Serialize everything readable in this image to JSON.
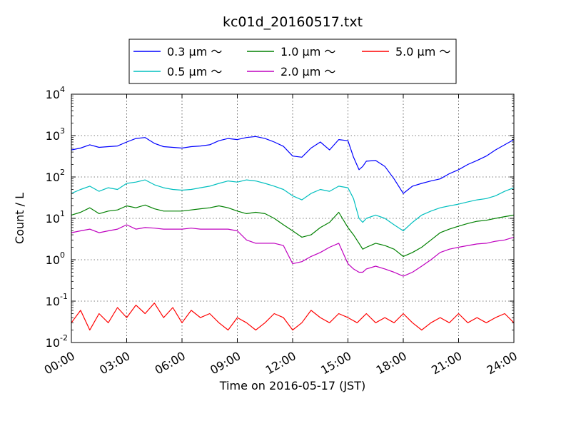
{
  "chart_data": {
    "type": "line",
    "title": "kc01d_20160517.txt",
    "xlabel": "Time on 2016-05-17 (JST)",
    "ylabel": "Count / L",
    "yscale": "log",
    "ylim": [
      0.01,
      10000
    ],
    "xlim_hours": [
      0,
      24
    ],
    "grid": true,
    "legend_position": "top-center",
    "x_ticks": [
      "00:00",
      "03:00",
      "06:00",
      "09:00",
      "12:00",
      "15:00",
      "18:00",
      "21:00",
      "24:00"
    ],
    "y_ticks": [
      {
        "base": "10",
        "exp": "-2"
      },
      {
        "base": "10",
        "exp": "-1"
      },
      {
        "base": "10",
        "exp": "0"
      },
      {
        "base": "10",
        "exp": "1"
      },
      {
        "base": "10",
        "exp": "2"
      },
      {
        "base": "10",
        "exp": "3"
      },
      {
        "base": "10",
        "exp": "4"
      }
    ],
    "series": [
      {
        "name": "0.3 μm ～",
        "color": "#0000ff",
        "x": [
          0,
          0.5,
          1,
          1.5,
          2,
          2.5,
          3,
          3.5,
          4,
          4.5,
          5,
          5.5,
          6,
          6.5,
          7,
          7.5,
          8,
          8.5,
          9,
          9.5,
          10,
          10.5,
          11,
          11.5,
          12,
          12.5,
          13,
          13.5,
          14,
          14.5,
          15,
          15.3,
          15.6,
          15.8,
          16,
          16.5,
          17,
          17.5,
          18,
          18.5,
          19,
          19.5,
          20,
          20.5,
          21,
          21.5,
          22,
          22.5,
          23,
          23.5,
          24
        ],
        "y": [
          450,
          500,
          600,
          520,
          540,
          560,
          700,
          850,
          900,
          650,
          540,
          520,
          500,
          540,
          560,
          600,
          750,
          850,
          800,
          900,
          950,
          850,
          700,
          550,
          320,
          300,
          500,
          700,
          450,
          800,
          750,
          300,
          150,
          180,
          240,
          250,
          180,
          90,
          40,
          60,
          70,
          80,
          90,
          120,
          150,
          200,
          250,
          320,
          450,
          600,
          800
        ]
      },
      {
        "name": "0.5 μm ～",
        "color": "#00bfbf",
        "x": [
          0,
          0.5,
          1,
          1.5,
          2,
          2.5,
          3,
          3.5,
          4,
          4.5,
          5,
          5.5,
          6,
          6.5,
          7,
          7.5,
          8,
          8.5,
          9,
          9.5,
          10,
          10.5,
          11,
          11.5,
          12,
          12.5,
          13,
          13.5,
          14,
          14.5,
          15,
          15.3,
          15.6,
          15.8,
          16,
          16.5,
          17,
          17.5,
          18,
          18.5,
          19,
          19.5,
          20,
          20.5,
          21,
          21.5,
          22,
          22.5,
          23,
          23.5,
          24
        ],
        "y": [
          40,
          50,
          60,
          45,
          55,
          50,
          70,
          75,
          85,
          65,
          55,
          50,
          48,
          50,
          55,
          60,
          70,
          80,
          75,
          85,
          80,
          70,
          60,
          50,
          35,
          28,
          40,
          50,
          45,
          60,
          55,
          30,
          10,
          8,
          10,
          12,
          10,
          7,
          5,
          8,
          12,
          15,
          18,
          20,
          22,
          25,
          28,
          30,
          35,
          45,
          55
        ]
      },
      {
        "name": "1.0 μm ～",
        "color": "#008000",
        "x": [
          0,
          0.5,
          1,
          1.5,
          2,
          2.5,
          3,
          3.5,
          4,
          4.5,
          5,
          5.5,
          6,
          6.5,
          7,
          7.5,
          8,
          8.5,
          9,
          9.5,
          10,
          10.5,
          11,
          11.5,
          12,
          12.5,
          13,
          13.5,
          14,
          14.5,
          15,
          15.3,
          15.6,
          15.8,
          16,
          16.5,
          17,
          17.5,
          18,
          18.5,
          19,
          19.5,
          20,
          20.5,
          21,
          21.5,
          22,
          22.5,
          23,
          23.5,
          24
        ],
        "y": [
          12,
          14,
          18,
          13,
          15,
          16,
          20,
          18,
          21,
          17,
          15,
          15,
          15,
          16,
          17,
          18,
          20,
          18,
          15,
          13,
          14,
          13,
          10,
          7,
          5,
          3.5,
          4,
          6,
          8,
          14,
          6,
          4,
          2.5,
          1.8,
          2,
          2.5,
          2.2,
          1.8,
          1.2,
          1.5,
          2,
          3,
          4.5,
          5.5,
          6.5,
          7.5,
          8.5,
          9,
          10,
          11,
          12
        ]
      },
      {
        "name": "2.0 μm ～",
        "color": "#bf00bf",
        "x": [
          0,
          0.5,
          1,
          1.5,
          2,
          2.5,
          3,
          3.5,
          4,
          4.5,
          5,
          5.5,
          6,
          6.5,
          7,
          7.5,
          8,
          8.5,
          9,
          9.5,
          10,
          10.5,
          11,
          11.5,
          12,
          12.5,
          13,
          13.5,
          14,
          14.5,
          15,
          15.3,
          15.6,
          15.8,
          16,
          16.5,
          17,
          17.5,
          18,
          18.5,
          19,
          19.5,
          20,
          20.5,
          21,
          21.5,
          22,
          22.5,
          23,
          23.5,
          24
        ],
        "y": [
          4.5,
          5,
          5.5,
          4.5,
          5,
          5.5,
          7,
          5.5,
          6,
          5.8,
          5.5,
          5.5,
          5.5,
          5.8,
          5.5,
          5.5,
          5.5,
          5.5,
          5,
          3,
          2.5,
          2.5,
          2.5,
          2.2,
          0.8,
          0.9,
          1.2,
          1.5,
          2,
          2.5,
          0.8,
          0.6,
          0.5,
          0.5,
          0.6,
          0.7,
          0.6,
          0.5,
          0.4,
          0.5,
          0.7,
          1,
          1.5,
          1.8,
          2,
          2.2,
          2.4,
          2.5,
          2.8,
          3,
          3.5
        ]
      },
      {
        "name": "5.0 μm ～",
        "color": "#ff0000",
        "x": [
          0,
          0.5,
          1,
          1.5,
          2,
          2.5,
          3,
          3.5,
          4,
          4.5,
          5,
          5.5,
          6,
          6.5,
          7,
          7.5,
          8,
          8.5,
          9,
          9.5,
          10,
          10.5,
          11,
          11.5,
          12,
          12.5,
          13,
          13.5,
          14,
          14.5,
          15,
          15.5,
          16,
          16.5,
          17,
          17.5,
          18,
          18.5,
          19,
          19.5,
          20,
          20.5,
          21,
          21.5,
          22,
          22.5,
          23,
          23.5,
          24
        ],
        "y": [
          0.03,
          0.06,
          0.02,
          0.05,
          0.03,
          0.07,
          0.04,
          0.08,
          0.05,
          0.09,
          0.04,
          0.07,
          0.03,
          0.06,
          0.04,
          0.05,
          0.03,
          0.02,
          0.04,
          0.03,
          0.02,
          0.03,
          0.05,
          0.04,
          0.02,
          0.03,
          0.06,
          0.04,
          0.03,
          0.05,
          0.04,
          0.03,
          0.05,
          0.03,
          0.04,
          0.03,
          0.05,
          0.03,
          0.02,
          0.03,
          0.04,
          0.03,
          0.05,
          0.03,
          0.04,
          0.03,
          0.04,
          0.05,
          0.03
        ]
      }
    ]
  }
}
